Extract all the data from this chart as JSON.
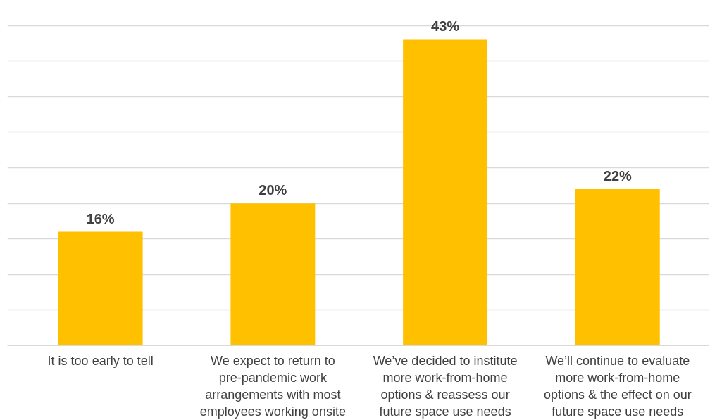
{
  "chart_data": {
    "type": "bar",
    "categories": [
      "It is too early to tell",
      "We expect to return to\npre-pandemic work\narrangements with most\nemployees working onsite",
      "We’ve decided to institute\nmore work-from-home\noptions & reassess our\nfuture space use needs",
      "We’ll continue to evaluate\nmore work-from-home\noptions & the effect on our\nfuture space use needs"
    ],
    "values": [
      16,
      20,
      43,
      22
    ],
    "value_labels": [
      "16%",
      "20%",
      "43%",
      "22%"
    ],
    "color": "#ffc000",
    "yticks": [
      {
        "value": 0,
        "label": null
      },
      {
        "value": 5,
        "label": null
      },
      {
        "value": 10,
        "label": null
      },
      {
        "value": 15,
        "label": null
      },
      {
        "value": 20,
        "label": null
      },
      {
        "value": 25,
        "label": null
      },
      {
        "value": 30,
        "label": null
      },
      {
        "value": 35,
        "label": null
      },
      {
        "value": 40,
        "label": null
      },
      {
        "value": 45,
        "label": null
      }
    ],
    "grid": "y",
    "tick_labels": "x"
  }
}
